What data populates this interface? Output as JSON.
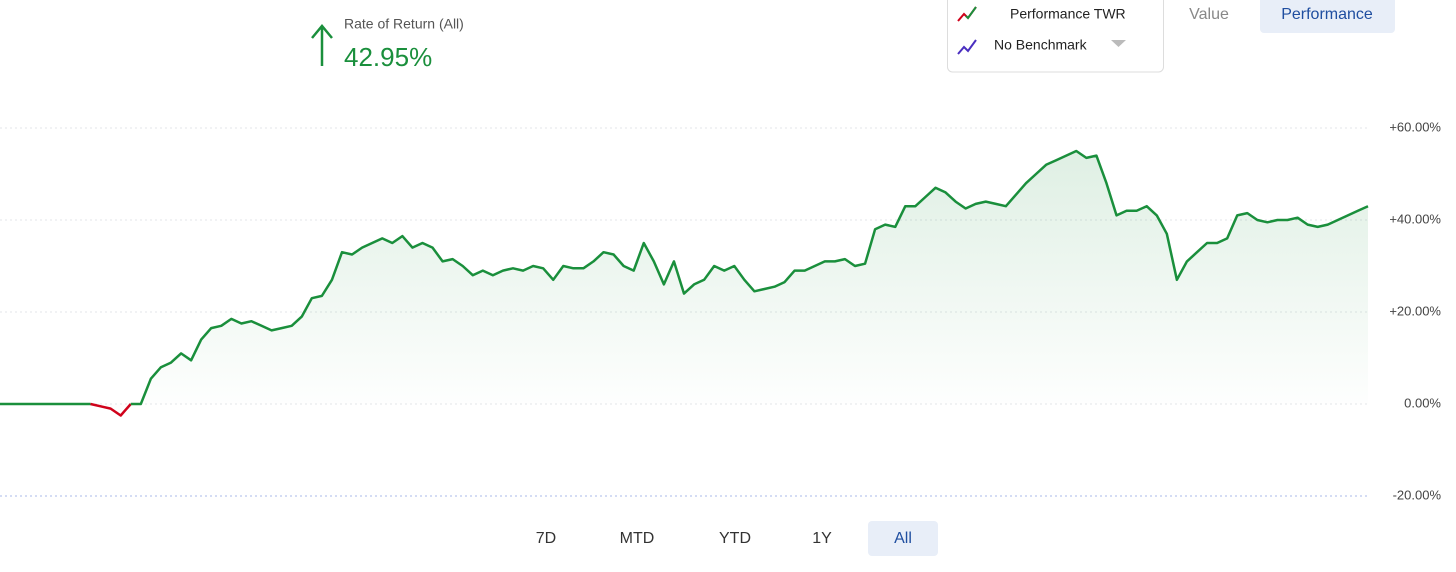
{
  "summary": {
    "label": "Rate of Return (All)",
    "value": "42.95%"
  },
  "view_tabs": [
    "Value",
    "Performance"
  ],
  "active_view": 1,
  "benchmark": "No Benchmark",
  "ranges": [
    "7D",
    "MTD",
    "YTD",
    "1Y",
    "All"
  ],
  "active_range": 4,
  "chart_data": {
    "type": "line",
    "ylim": [
      -20,
      60
    ],
    "yticks": [
      {
        "value": -20,
        "label": "-20.00%"
      },
      {
        "value": 0,
        "label": "0.00%"
      },
      {
        "value": 20,
        "label": "+20.00%"
      },
      {
        "value": 40,
        "label": "+40.00%"
      },
      {
        "value": 60,
        "label": "+60.00%"
      }
    ],
    "grid": true,
    "series": [
      {
        "name": "Performance TWR",
        "color": "#1a8f3c",
        "negative_color": "#d0021b",
        "values": [
          0,
          0,
          0,
          0,
          0,
          0,
          0,
          0,
          0,
          0,
          -0.5,
          -1,
          -2.5,
          0,
          0,
          5.5,
          8,
          9,
          11,
          9.5,
          14,
          16.5,
          17,
          18.5,
          17.5,
          18,
          17,
          16,
          16.5,
          17,
          19,
          23,
          23.5,
          27,
          33,
          32.5,
          34,
          35,
          36,
          35,
          36.5,
          34,
          35,
          34,
          31,
          31.5,
          30,
          28,
          29,
          28,
          29,
          29.5,
          29,
          30,
          29.5,
          27,
          30,
          29.5,
          29.5,
          31,
          33,
          32.5,
          30,
          29,
          35,
          31,
          26,
          31,
          24,
          26,
          27,
          30,
          29,
          30,
          27,
          24.5,
          25,
          25.5,
          26.5,
          29,
          29,
          30,
          31,
          31,
          31.5,
          30,
          30.5,
          38,
          39,
          38.5,
          43,
          43,
          45,
          47,
          46,
          44,
          42.5,
          43.5,
          44,
          43.5,
          43,
          45.5,
          48,
          50,
          52,
          53,
          54,
          55,
          53.5,
          54,
          48,
          41,
          42,
          42,
          43,
          41,
          37,
          27,
          31,
          33,
          35,
          35,
          36,
          41,
          41.5,
          40,
          39.5,
          40,
          40,
          40.5,
          39,
          38.5,
          39,
          40,
          41,
          42,
          43
        ]
      }
    ]
  }
}
